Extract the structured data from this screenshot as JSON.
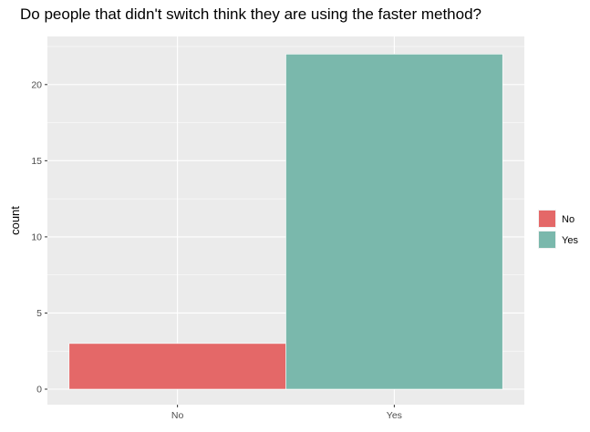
{
  "chart_data": {
    "type": "bar",
    "title": "Do people that didn't switch think they are using the faster method?",
    "xlabel": "",
    "ylabel": "count",
    "categories": [
      "No",
      "Yes"
    ],
    "values": [
      3,
      22
    ],
    "ylim": [
      0,
      23.1
    ],
    "yticks": [
      0,
      5,
      10,
      15,
      20
    ],
    "grid": true,
    "legend": {
      "position": "right",
      "entries": [
        {
          "label": "No",
          "color": "#e46868"
        },
        {
          "label": "Yes",
          "color": "#7ab8ac"
        }
      ]
    },
    "colors": {
      "panel": "#ebebeb",
      "grid_major": "#ffffff",
      "bar_outline": "#ffffff"
    }
  }
}
